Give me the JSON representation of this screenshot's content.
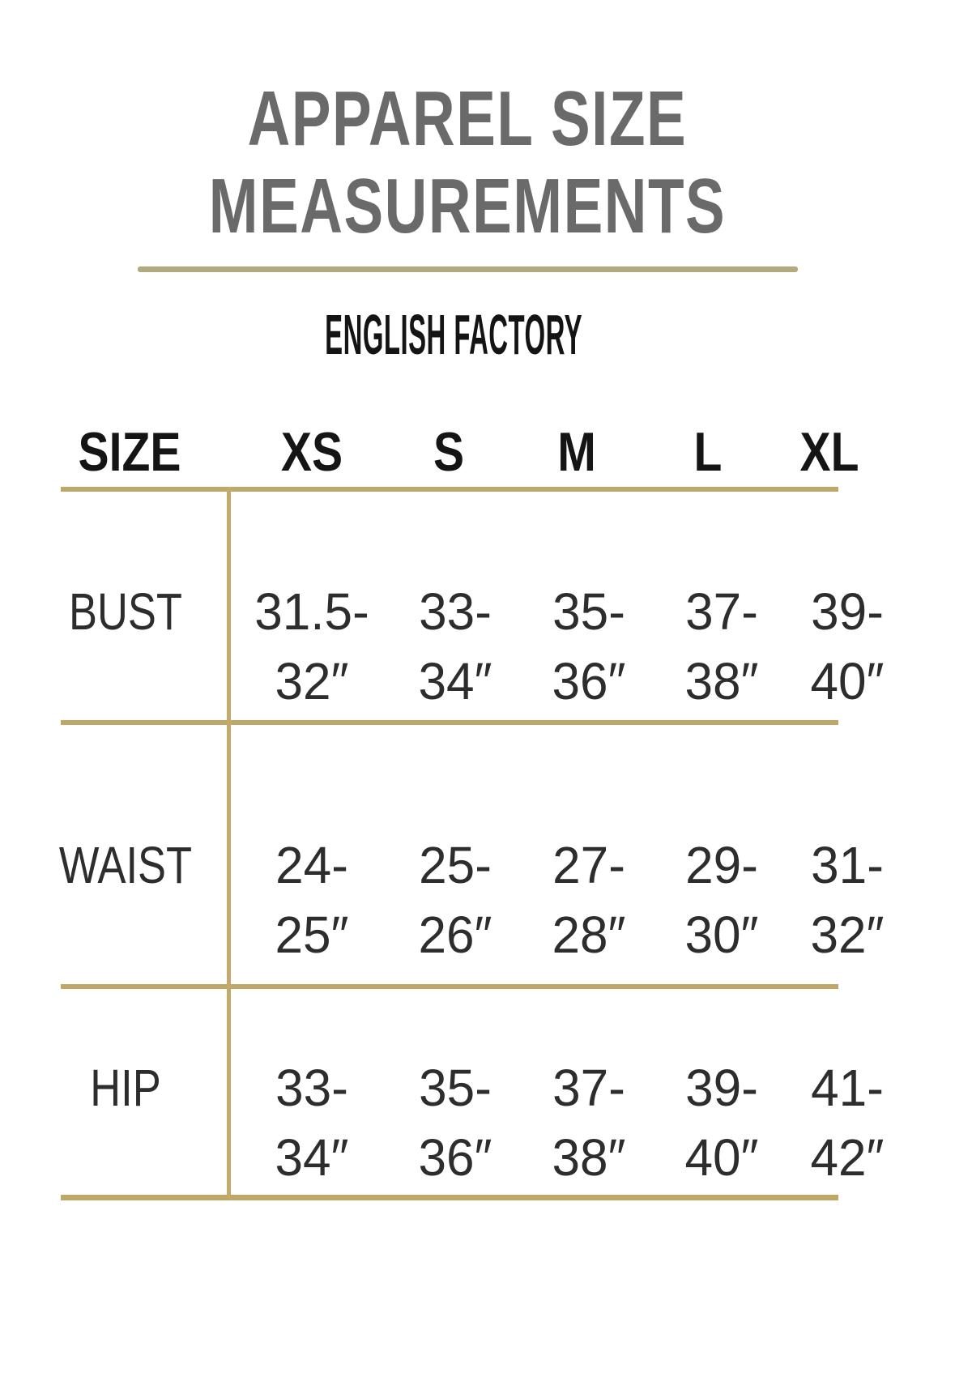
{
  "page": {
    "title": [
      "APPAREL SIZE",
      "MEASUREMENTS"
    ],
    "brand": "ENGLISH FACTORY"
  },
  "table": {
    "columns": [
      "SIZE",
      "XS",
      "S",
      "M",
      "L",
      "XL"
    ],
    "rows": [
      {
        "label": "BUST",
        "values": [
          [
            "31.5-",
            "32″"
          ],
          [
            "33-",
            "34″"
          ],
          [
            "35-",
            "36″"
          ],
          [
            "37-",
            "38″"
          ],
          [
            "39-",
            "40″"
          ]
        ]
      },
      {
        "label": "WAIST",
        "values": [
          [
            "24-",
            "25″"
          ],
          [
            "25-",
            "26″"
          ],
          [
            "27-",
            "28″"
          ],
          [
            "29-",
            "30″"
          ],
          [
            "31-",
            "32″"
          ]
        ]
      },
      {
        "label": "HIP",
        "values": [
          [
            "33-",
            "34″"
          ],
          [
            "35-",
            "36″"
          ],
          [
            "37-",
            "38″"
          ],
          [
            "39-",
            "40″"
          ],
          [
            "41-",
            "42″"
          ]
        ]
      }
    ]
  },
  "colors": {
    "title_text": "#6a6a6a",
    "brand_text": "#141414",
    "header_text": "#151515",
    "body_text": "#2d2d2d",
    "rule_gold": "#bfa766",
    "underline_gold": "#b2aa7c",
    "background": "#ffffff"
  }
}
